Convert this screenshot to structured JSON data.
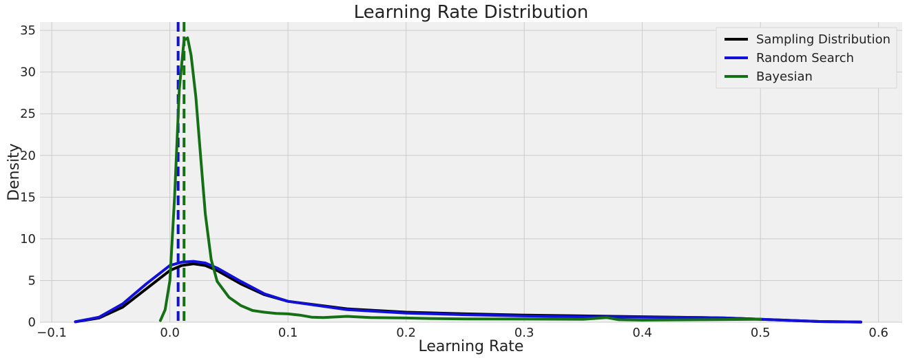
{
  "chart_data": {
    "type": "line",
    "title": "Learning Rate Distribution",
    "xlabel": "Learning Rate",
    "ylabel": "Density",
    "xlim": [
      -0.11,
      0.62
    ],
    "ylim": [
      0,
      36
    ],
    "x_ticks": [
      -0.1,
      0.0,
      0.1,
      0.2,
      0.3,
      0.4,
      0.5,
      0.6
    ],
    "x_tick_labels": [
      "−0.1",
      "0.0",
      "0.1",
      "0.2",
      "0.3",
      "0.4",
      "0.5",
      "0.6"
    ],
    "y_ticks": [
      0,
      5,
      10,
      15,
      20,
      25,
      30,
      35
    ],
    "y_tick_labels": [
      "0",
      "5",
      "10",
      "15",
      "20",
      "25",
      "30",
      "35"
    ],
    "grid": true,
    "legend_position": "top-right",
    "series": [
      {
        "name": "Sampling Distribution",
        "color": "#000000",
        "style": "solid",
        "x": [
          -0.08,
          -0.06,
          -0.04,
          -0.02,
          0.0,
          0.01,
          0.02,
          0.03,
          0.04,
          0.06,
          0.08,
          0.1,
          0.15,
          0.2,
          0.25,
          0.3,
          0.35,
          0.4,
          0.45,
          0.47,
          0.5,
          0.55,
          0.585
        ],
        "y": [
          0.05,
          0.5,
          1.8,
          4.0,
          6.2,
          6.8,
          7.0,
          6.8,
          6.2,
          4.6,
          3.3,
          2.5,
          1.6,
          1.2,
          1.0,
          0.85,
          0.75,
          0.65,
          0.55,
          0.5,
          0.35,
          0.08,
          0.02
        ]
      },
      {
        "name": "Random Search",
        "color": "#1010d8",
        "style": "solid",
        "x": [
          -0.08,
          -0.06,
          -0.04,
          -0.02,
          0.0,
          0.01,
          0.02,
          0.03,
          0.04,
          0.06,
          0.08,
          0.1,
          0.15,
          0.2,
          0.25,
          0.3,
          0.35,
          0.4,
          0.45,
          0.47,
          0.5,
          0.55,
          0.585
        ],
        "y": [
          0.05,
          0.6,
          2.2,
          4.6,
          6.8,
          7.2,
          7.3,
          7.1,
          6.5,
          4.9,
          3.4,
          2.5,
          1.5,
          1.1,
          0.9,
          0.75,
          0.65,
          0.6,
          0.55,
          0.5,
          0.35,
          0.08,
          0.02
        ]
      },
      {
        "name": "Bayesian",
        "color": "#157015",
        "style": "solid",
        "x": [
          -0.008,
          -0.004,
          0.0,
          0.004,
          0.008,
          0.012,
          0.015,
          0.018,
          0.022,
          0.026,
          0.03,
          0.035,
          0.04,
          0.05,
          0.06,
          0.07,
          0.08,
          0.09,
          0.1,
          0.11,
          0.12,
          0.13,
          0.15,
          0.17,
          0.2,
          0.22,
          0.25,
          0.3,
          0.35,
          0.37,
          0.38,
          0.4,
          0.45,
          0.5
        ],
        "y": [
          0.2,
          1.5,
          5.0,
          15.0,
          28.0,
          33.8,
          34.1,
          32.0,
          27.0,
          20.0,
          13.0,
          7.5,
          4.9,
          3.0,
          2.0,
          1.4,
          1.2,
          1.05,
          1.0,
          0.85,
          0.6,
          0.55,
          0.7,
          0.55,
          0.5,
          0.45,
          0.4,
          0.38,
          0.35,
          0.55,
          0.3,
          0.25,
          0.3,
          0.35
        ]
      }
    ],
    "vlines": [
      {
        "x": 0.007,
        "color": "#1010d8",
        "style": "dashed"
      },
      {
        "x": 0.012,
        "color": "#157015",
        "style": "dashed"
      }
    ]
  }
}
